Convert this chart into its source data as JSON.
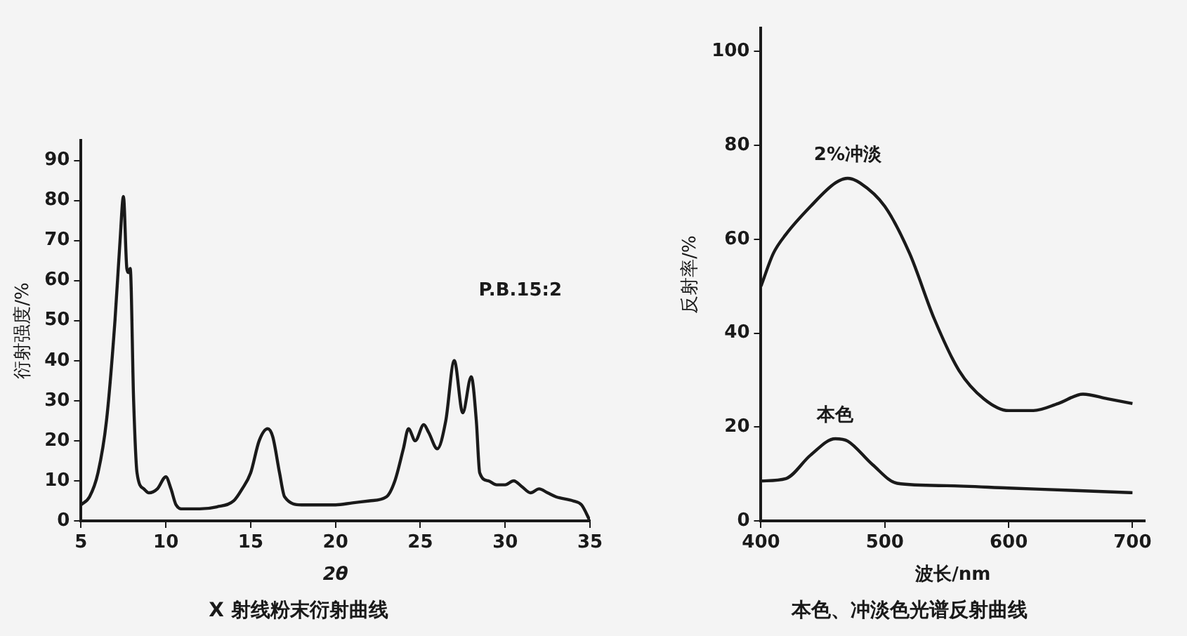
{
  "chart_data": [
    {
      "type": "line",
      "title": "X 射线粉末衍射曲线",
      "xlabel": "2θ",
      "ylabel": "衍射强度/%",
      "annotations": [
        "P.B.15:2"
      ],
      "xlim": [
        5,
        35
      ],
      "xticks": [
        5,
        10,
        15,
        20,
        25,
        30,
        35
      ],
      "ylim": [
        0,
        95
      ],
      "yticks": [
        0,
        10,
        20,
        30,
        40,
        50,
        60,
        70,
        80,
        90
      ],
      "grid": false,
      "legend": false,
      "marker": "none",
      "line_style": "solid",
      "series": [
        {
          "color": "#1a1a1a",
          "x": [
            5,
            5.5,
            6,
            6.5,
            7,
            7.3,
            7.5,
            7.7,
            7.8,
            7.9,
            8.1,
            8.3,
            8.7,
            9,
            9.5,
            10,
            10.3,
            10.6,
            11,
            12,
            13,
            14,
            14.5,
            15,
            15.5,
            16,
            16.3,
            16.7,
            17,
            18,
            19,
            20,
            21,
            22,
            23,
            23.5,
            24,
            24.3,
            24.7,
            25.2,
            25.5,
            26,
            26.5,
            27,
            27.5,
            28,
            28.3,
            28.5,
            29,
            29.5,
            30,
            30.5,
            31,
            31.5,
            32,
            32.5,
            33,
            34,
            34.5,
            35
          ],
          "values": [
            4,
            6,
            12,
            25,
            50,
            70,
            81,
            63,
            62,
            63,
            30,
            12,
            8,
            7,
            8,
            11,
            8,
            4,
            3,
            3,
            3.5,
            5,
            8,
            12,
            20,
            23,
            21,
            12,
            6,
            4,
            4,
            4,
            4.5,
            5,
            6,
            10,
            18,
            23,
            20,
            24,
            22,
            18,
            25,
            40,
            27,
            36,
            25,
            12,
            10,
            9,
            9,
            10,
            8.5,
            7,
            8,
            7,
            6,
            5,
            4,
            0
          ]
        }
      ]
    },
    {
      "type": "line",
      "title": "本色、冲淡色光谱反射曲线",
      "xlabel": "波长/nm",
      "ylabel": "反射率/%",
      "xlim": [
        400,
        710
      ],
      "xticks": [
        400,
        500,
        600,
        700
      ],
      "ylim": [
        0,
        105
      ],
      "yticks": [
        0,
        20,
        40,
        60,
        80,
        100
      ],
      "grid": false,
      "legend": false,
      "marker": "none",
      "line_style": "solid",
      "series": [
        {
          "name": "2%冲淡",
          "color": "#1a1a1a",
          "x": [
            400,
            410,
            420,
            440,
            460,
            470,
            480,
            500,
            520,
            540,
            560,
            580,
            600,
            620,
            640,
            660,
            680,
            700
          ],
          "values": [
            50,
            57,
            61,
            67,
            72,
            73,
            72,
            67,
            57,
            43,
            32,
            26,
            23.5,
            23.5,
            25,
            27,
            26,
            25
          ]
        },
        {
          "name": "本色",
          "color": "#1a1a1a",
          "x": [
            400,
            420,
            440,
            460,
            470,
            490,
            510,
            550,
            600,
            650,
            700
          ],
          "values": [
            8.5,
            9,
            14,
            17.5,
            17,
            12,
            8,
            7.5,
            7,
            6.5,
            6
          ]
        }
      ]
    }
  ]
}
